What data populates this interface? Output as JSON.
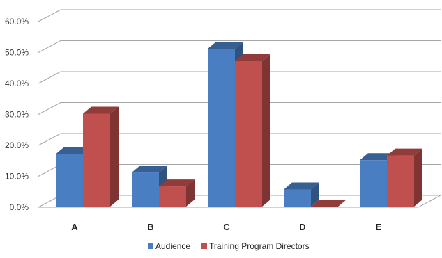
{
  "chart_data": {
    "type": "bar",
    "categories": [
      "A",
      "B",
      "C",
      "D",
      "E"
    ],
    "series": [
      {
        "name": "Audience",
        "values": [
          17.0,
          11.0,
          51.0,
          5.5,
          15.0
        ],
        "color": "#4a7ec2"
      },
      {
        "name": "Training Program Directors",
        "values": [
          30.0,
          6.5,
          47.0,
          0.0,
          16.5
        ],
        "color": "#c0504d"
      }
    ],
    "ylim": [
      0,
      60
    ],
    "ytick_labels": [
      "0.0%",
      "10.0%",
      "20.0%",
      "30.0%",
      "40.0%",
      "50.0%",
      "60.0%"
    ],
    "title": "",
    "xlabel": "",
    "ylabel": "",
    "grid": true,
    "legend_position": "bottom",
    "style": "3d-clustered-column"
  }
}
